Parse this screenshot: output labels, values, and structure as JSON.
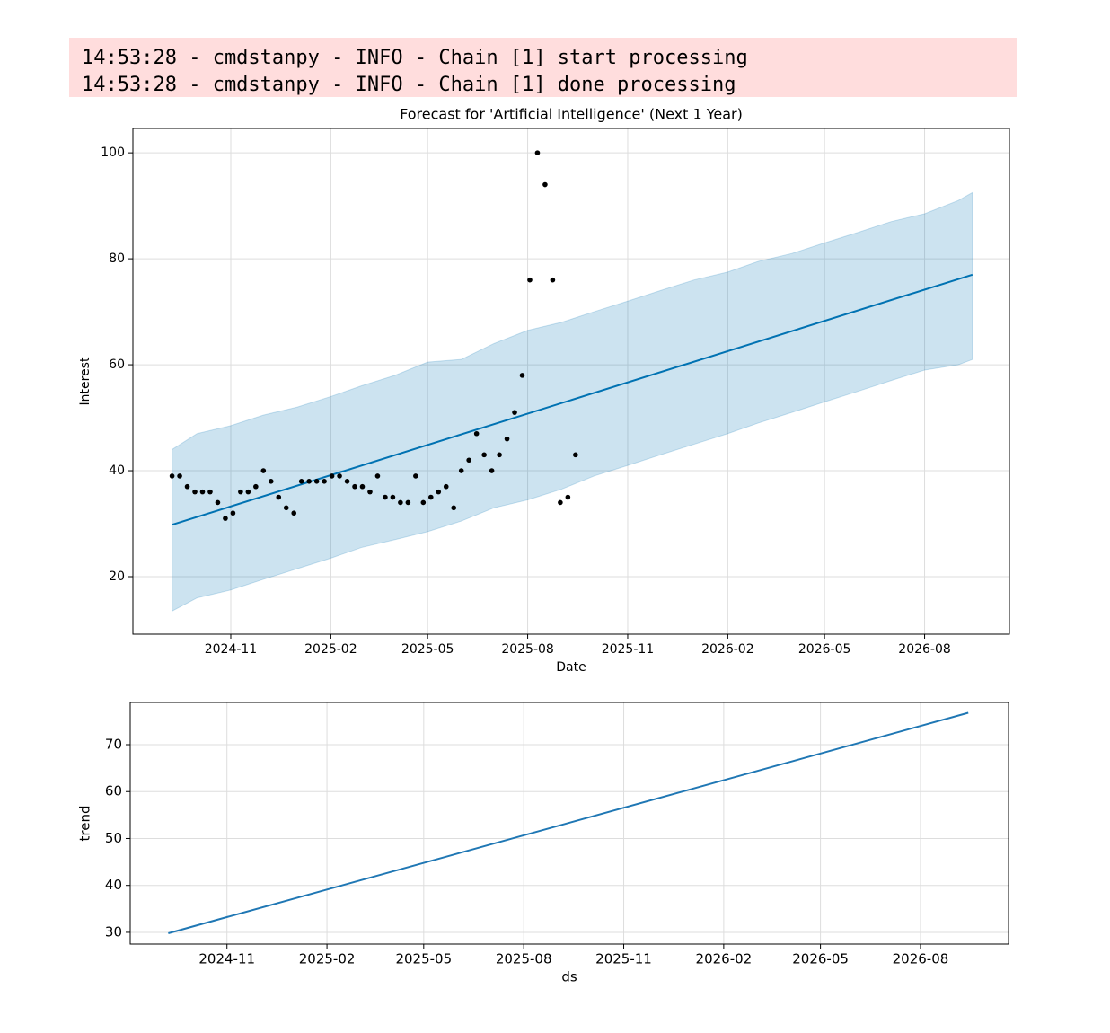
{
  "log": [
    "14:53:28 - cmdstanpy - INFO - Chain [1] start processing",
    "14:53:28 - cmdstanpy - INFO - Chain [1] done processing"
  ],
  "chart_data": [
    {
      "type": "line",
      "title": "Forecast for 'Artificial Intelligence' (Next 1 Year)",
      "x_label": "Date",
      "y_label": "Interest",
      "xlim": [
        "2024-08-03",
        "2026-10-18"
      ],
      "ylim": [
        9.15,
        104.6
      ],
      "xticks": [
        "2024-11",
        "2025-02",
        "2025-05",
        "2025-08",
        "2025-11",
        "2026-02",
        "2026-05",
        "2026-08"
      ],
      "yticks": [
        20,
        40,
        60,
        80,
        100
      ],
      "grid": true,
      "band": {
        "color": "#0072b2",
        "x": [
          "2024-09-08",
          "2024-10-01",
          "2024-11-01",
          "2024-12-01",
          "2025-01-01",
          "2025-02-01",
          "2025-03-01",
          "2025-04-01",
          "2025-05-01",
          "2025-06-01",
          "2025-07-01",
          "2025-08-01",
          "2025-09-01",
          "2025-10-01",
          "2025-11-01",
          "2025-12-01",
          "2026-01-01",
          "2026-02-01",
          "2026-03-01",
          "2026-04-01",
          "2026-05-01",
          "2026-06-01",
          "2026-07-01",
          "2026-08-01",
          "2026-09-01",
          "2026-09-14"
        ],
        "upper": [
          44,
          47,
          48.5,
          50.5,
          52,
          54,
          56,
          58,
          60.5,
          61,
          64,
          66.5,
          68,
          70,
          72,
          74,
          76,
          77.5,
          79.5,
          81,
          83,
          85,
          87,
          88.5,
          91,
          92.5
        ],
        "lower": [
          13.5,
          16,
          17.5,
          19.5,
          21.5,
          23.5,
          25.5,
          27,
          28.5,
          30.5,
          33,
          34.5,
          36.5,
          39,
          41,
          43,
          45,
          47,
          49,
          51,
          53,
          55,
          57,
          59,
          60,
          61
        ]
      },
      "forecast": {
        "color": "#0072b2",
        "x": [
          "2024-09-08",
          "2026-09-14"
        ],
        "values": [
          29.8,
          77
        ]
      },
      "points": {
        "color": "#000000",
        "x": [
          "2024-09-08",
          "2024-09-15",
          "2024-09-22",
          "2024-09-29",
          "2024-10-06",
          "2024-10-13",
          "2024-10-20",
          "2024-10-27",
          "2024-11-03",
          "2024-11-10",
          "2024-11-17",
          "2024-11-24",
          "2024-12-01",
          "2024-12-08",
          "2024-12-15",
          "2024-12-22",
          "2024-12-29",
          "2025-01-05",
          "2025-01-12",
          "2025-01-19",
          "2025-01-26",
          "2025-02-02",
          "2025-02-09",
          "2025-02-16",
          "2025-02-23",
          "2025-03-02",
          "2025-03-09",
          "2025-03-16",
          "2025-03-23",
          "2025-03-30",
          "2025-04-06",
          "2025-04-13",
          "2025-04-20",
          "2025-04-27",
          "2025-05-04",
          "2025-05-11",
          "2025-05-18",
          "2025-05-25",
          "2025-06-01",
          "2025-06-08",
          "2025-06-15",
          "2025-06-22",
          "2025-06-29",
          "2025-07-06",
          "2025-07-13",
          "2025-07-20",
          "2025-07-27",
          "2025-08-03",
          "2025-08-10",
          "2025-08-17",
          "2025-08-24",
          "2025-08-31",
          "2025-09-07",
          "2025-09-14"
        ],
        "values": [
          39,
          39,
          37,
          36,
          36,
          36,
          34,
          31,
          32,
          36,
          36,
          37,
          40,
          38,
          35,
          33,
          32,
          38,
          38,
          38,
          38,
          39,
          39,
          38,
          37,
          37,
          36,
          39,
          35,
          35,
          34,
          34,
          39,
          34,
          35,
          36,
          37,
          33,
          40,
          42,
          47,
          43,
          40,
          43,
          46,
          51,
          58,
          76,
          100,
          94,
          76,
          34,
          35,
          43
        ]
      }
    },
    {
      "type": "line",
      "x_label": "ds",
      "y_label": "trend",
      "xlim": [
        "2024-08-04",
        "2026-10-21"
      ],
      "ylim": [
        27.5,
        79
      ],
      "xticks": [
        "2024-11",
        "2025-02",
        "2025-05",
        "2025-08",
        "2025-11",
        "2026-02",
        "2026-05",
        "2026-08"
      ],
      "yticks": [
        30,
        40,
        50,
        60,
        70
      ],
      "grid": true,
      "forecast": {
        "color": "#1f77b4",
        "x": [
          "2024-09-08",
          "2026-09-14"
        ],
        "values": [
          29.8,
          76.8
        ]
      }
    }
  ]
}
